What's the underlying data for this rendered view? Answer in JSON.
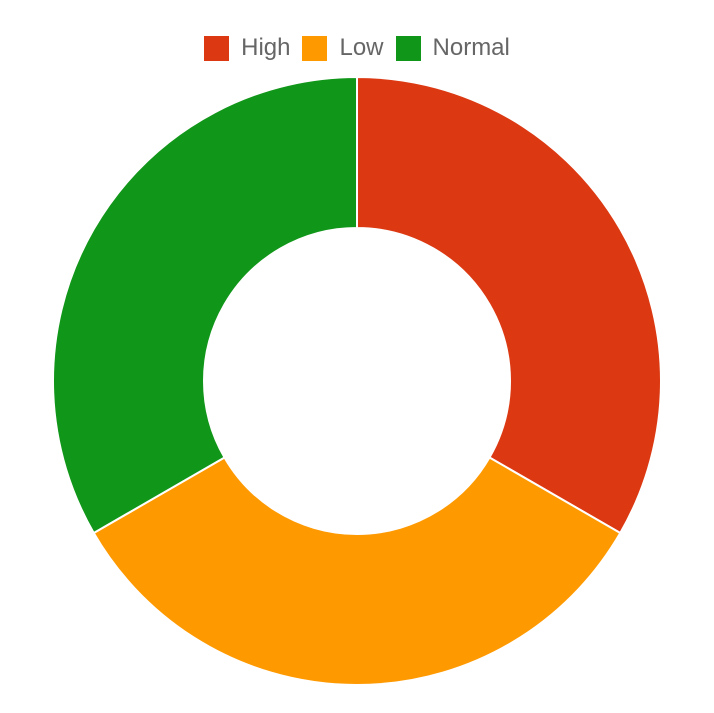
{
  "chart_data": {
    "type": "pie",
    "variant": "doughnut",
    "categories": [
      "High",
      "Low",
      "Normal"
    ],
    "values": [
      1,
      1,
      1
    ],
    "colors": [
      "#dc3912",
      "#ff9900",
      "#109618"
    ],
    "legend_position": "top"
  }
}
